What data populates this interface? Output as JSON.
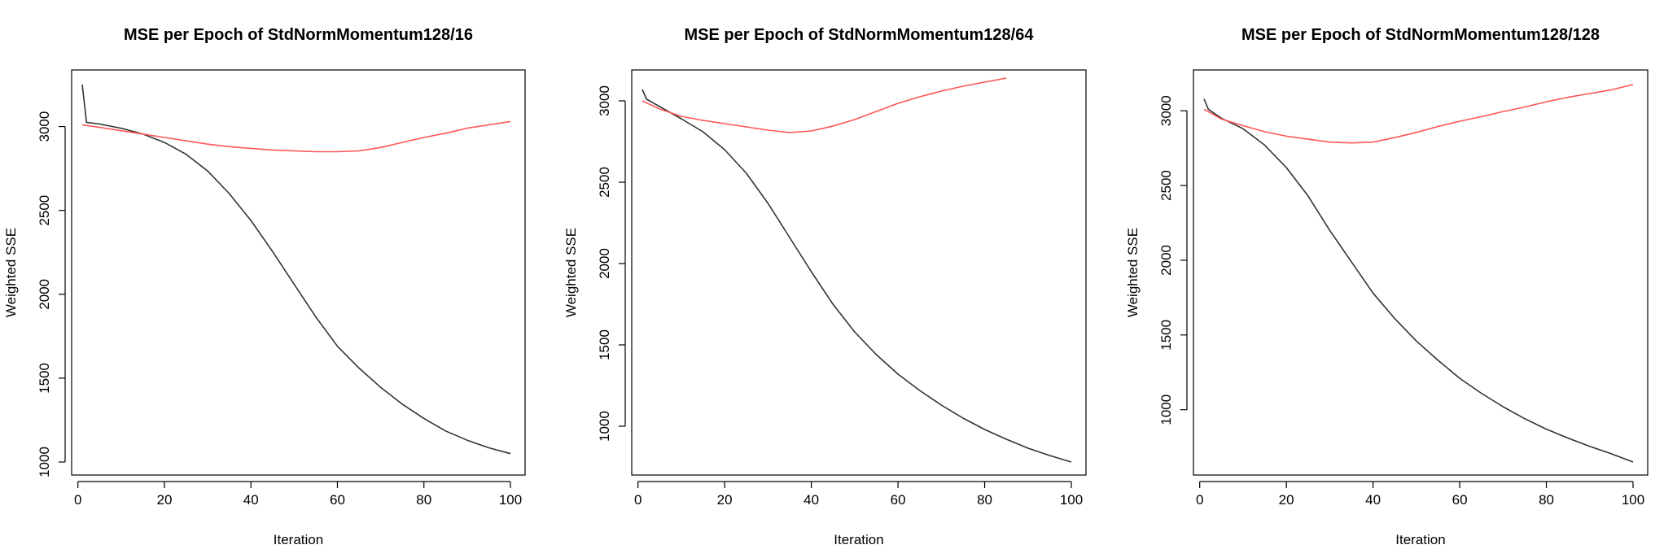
{
  "chart_data": [
    {
      "type": "line",
      "title": "MSE per Epoch of StdNormMomentum128/16",
      "xlabel": "Iteration",
      "ylabel": "Weighted SSE",
      "xlim": [
        1,
        100
      ],
      "ylim": [
        1000,
        3250
      ],
      "x_ticks": [
        0,
        20,
        40,
        60,
        80,
        100
      ],
      "y_ticks": [
        1000,
        1500,
        2000,
        2500,
        3000
      ],
      "grid": false,
      "legend": "none",
      "series": [
        {
          "color": "#333333",
          "x": [
            1,
            2,
            5,
            10,
            15,
            20,
            25,
            30,
            35,
            40,
            45,
            50,
            55,
            60,
            65,
            70,
            75,
            80,
            85,
            90,
            95,
            100
          ],
          "y": [
            3250,
            3025,
            3015,
            2990,
            2955,
            2905,
            2835,
            2735,
            2600,
            2440,
            2255,
            2060,
            1865,
            1690,
            1560,
            1445,
            1345,
            1260,
            1185,
            1130,
            1085,
            1050
          ]
        },
        {
          "color": "#ff5555",
          "x": [
            1,
            5,
            10,
            15,
            20,
            25,
            30,
            35,
            40,
            45,
            50,
            55,
            60,
            65,
            70,
            75,
            80,
            85,
            90,
            95,
            100
          ],
          "y": [
            3010,
            2995,
            2975,
            2955,
            2935,
            2915,
            2895,
            2880,
            2870,
            2860,
            2855,
            2850,
            2850,
            2855,
            2875,
            2905,
            2935,
            2960,
            2990,
            3010,
            3030
          ]
        }
      ]
    },
    {
      "type": "line",
      "title": "MSE per Epoch of StdNormMomentum128/64",
      "xlabel": "Iteration",
      "ylabel": "Weighted SSE",
      "xlim": [
        1,
        100
      ],
      "ylim": [
        780,
        3100
      ],
      "x_ticks": [
        0,
        20,
        40,
        60,
        80,
        100
      ],
      "y_ticks": [
        1000,
        1500,
        2000,
        2500,
        3000
      ],
      "grid": false,
      "legend": "none",
      "series": [
        {
          "color": "#333333",
          "x": [
            1,
            2,
            5,
            10,
            15,
            20,
            25,
            30,
            35,
            40,
            45,
            50,
            55,
            60,
            65,
            70,
            75,
            80,
            85,
            90,
            95,
            100
          ],
          "y": [
            3070,
            3010,
            2965,
            2890,
            2810,
            2700,
            2555,
            2370,
            2160,
            1950,
            1750,
            1580,
            1440,
            1320,
            1220,
            1130,
            1050,
            980,
            920,
            865,
            820,
            780
          ]
        },
        {
          "color": "#ff5555",
          "x": [
            1,
            5,
            10,
            15,
            20,
            25,
            30,
            35,
            40,
            45,
            50,
            55,
            60,
            65,
            70,
            75,
            80,
            85
          ],
          "y": [
            3000,
            2950,
            2905,
            2880,
            2860,
            2840,
            2820,
            2805,
            2815,
            2845,
            2885,
            2935,
            2985,
            3025,
            3060,
            3090,
            3115,
            3140
          ]
        }
      ]
    },
    {
      "type": "line",
      "title": "MSE per Epoch of StdNormMomentum128/128",
      "xlabel": "Iteration",
      "ylabel": "Weighted SSE",
      "xlim": [
        1,
        100
      ],
      "ylim": [
        650,
        3175
      ],
      "x_ticks": [
        0,
        20,
        40,
        60,
        80,
        100
      ],
      "y_ticks": [
        1000,
        1500,
        2000,
        2500,
        3000
      ],
      "grid": false,
      "legend": "none",
      "series": [
        {
          "color": "#333333",
          "x": [
            1,
            2,
            5,
            10,
            15,
            20,
            25,
            30,
            35,
            40,
            45,
            50,
            55,
            60,
            65,
            70,
            75,
            80,
            85,
            90,
            95,
            100
          ],
          "y": [
            3080,
            3010,
            2950,
            2880,
            2770,
            2620,
            2430,
            2200,
            1990,
            1780,
            1610,
            1460,
            1330,
            1210,
            1110,
            1020,
            940,
            870,
            810,
            755,
            705,
            650
          ]
        },
        {
          "color": "#ff5555",
          "x": [
            1,
            5,
            10,
            15,
            20,
            25,
            30,
            35,
            40,
            45,
            50,
            55,
            60,
            65,
            70,
            75,
            80,
            85,
            90,
            95,
            100
          ],
          "y": [
            3010,
            2945,
            2900,
            2860,
            2830,
            2810,
            2790,
            2785,
            2790,
            2820,
            2855,
            2895,
            2930,
            2960,
            2995,
            3025,
            3060,
            3090,
            3115,
            3140,
            3175
          ]
        }
      ]
    }
  ]
}
